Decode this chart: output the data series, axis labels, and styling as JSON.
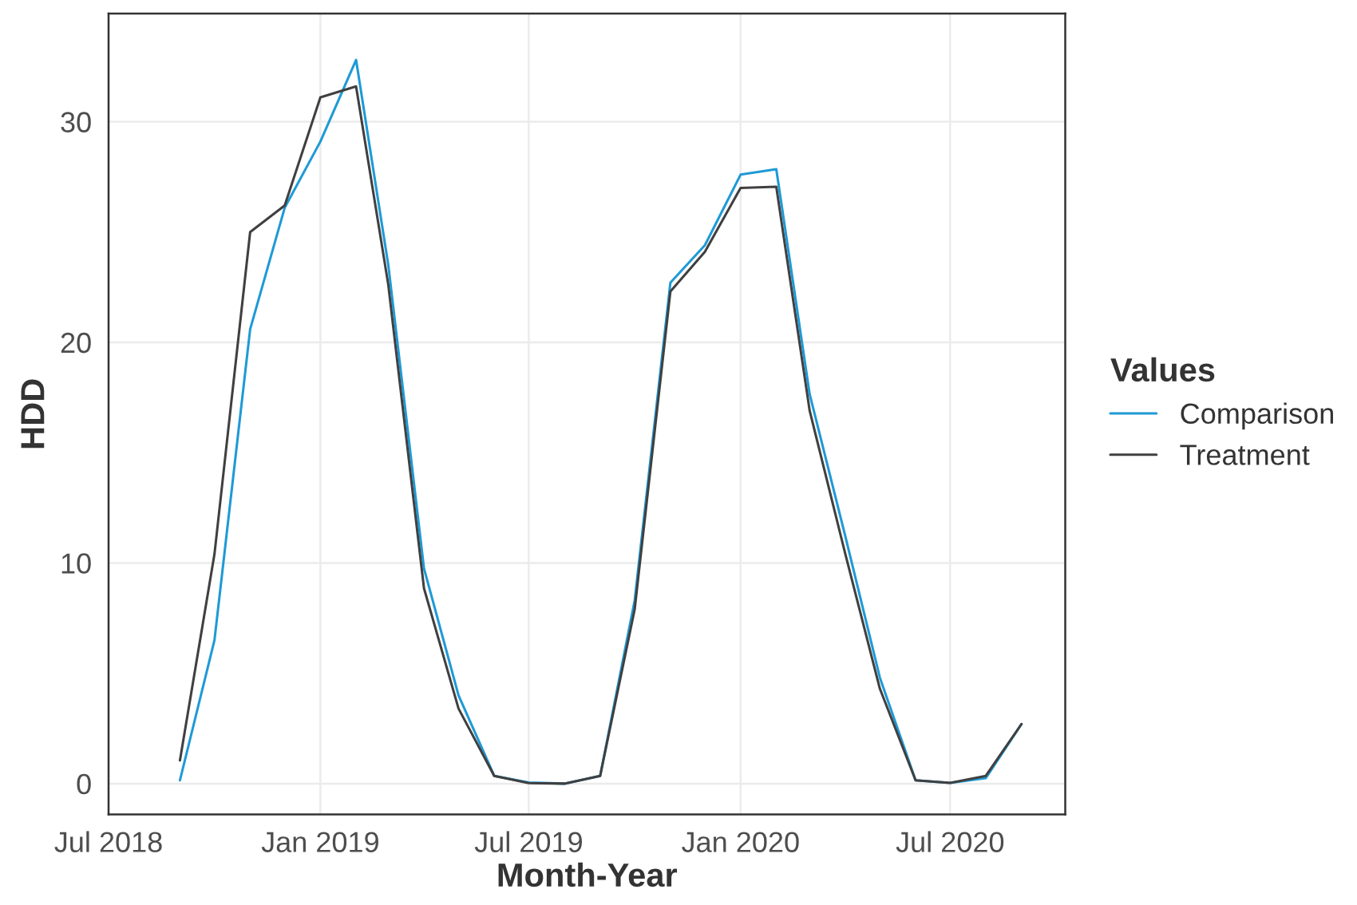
{
  "chart_data": {
    "type": "line",
    "xlabel": "Month-Year",
    "ylabel": "HDD",
    "legend_title": "Values",
    "legend": "right",
    "grid": true,
    "x": [
      "2018-09-01",
      "2018-10-01",
      "2018-11-01",
      "2018-12-01",
      "2019-01-01",
      "2019-02-01",
      "2019-03-01",
      "2019-04-01",
      "2019-05-01",
      "2019-06-01",
      "2019-07-01",
      "2019-08-01",
      "2019-09-01",
      "2019-10-01",
      "2019-11-01",
      "2019-12-01",
      "2020-01-01",
      "2020-02-01",
      "2020-03-01",
      "2020-04-01",
      "2020-05-01",
      "2020-06-01",
      "2020-07-01",
      "2020-08-01",
      "2020-09-01"
    ],
    "series": [
      {
        "name": "Comparison",
        "color": "#1f9ad6",
        "values": [
          0.15,
          6.5,
          20.6,
          26.1,
          29.1,
          32.8,
          23.5,
          9.75,
          4.0,
          0.35,
          0.05,
          0,
          0.35,
          8.3,
          22.7,
          24.4,
          27.6,
          27.85,
          17.65,
          11.2,
          4.8,
          0.15,
          0.03,
          0.25,
          2.7
        ]
      },
      {
        "name": "Treatment",
        "color": "#404040",
        "values": [
          1.05,
          10.4,
          25.0,
          26.2,
          31.1,
          31.6,
          22.6,
          8.85,
          3.4,
          0.35,
          0.02,
          0,
          0.35,
          7.9,
          22.3,
          24.1,
          27.0,
          27.05,
          16.9,
          10.4,
          4.3,
          0.15,
          0.03,
          0.35,
          2.7
        ]
      }
    ],
    "xlim": [
      "2018-07-01",
      "2020-10-09"
    ],
    "xticks": [
      {
        "value": "2018-07-01",
        "label": "Jul 2018"
      },
      {
        "value": "2019-01-01",
        "label": "Jan 2019"
      },
      {
        "value": "2019-07-01",
        "label": "Jul 2019"
      },
      {
        "value": "2020-01-01",
        "label": "Jan 2020"
      },
      {
        "value": "2020-07-01",
        "label": "Jul 2020"
      }
    ],
    "ylim": [
      -1.4,
      34.9
    ],
    "yticks": [
      0,
      10,
      20,
      30
    ]
  }
}
